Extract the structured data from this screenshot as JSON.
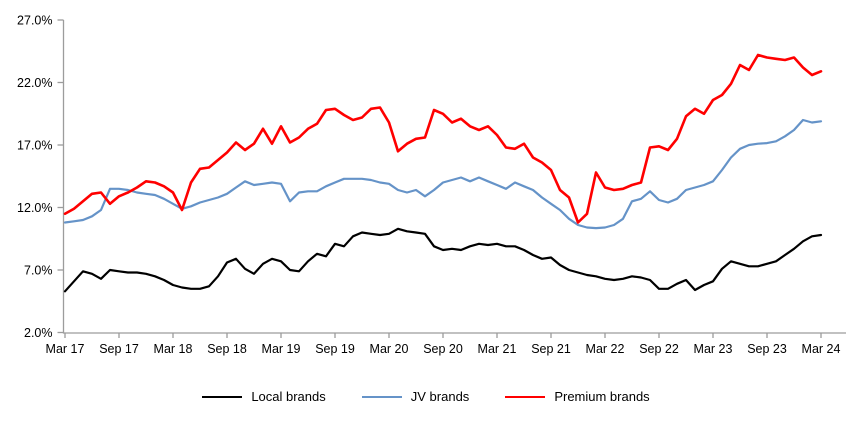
{
  "chart_data": {
    "type": "line",
    "title": "",
    "xlabel": "",
    "ylabel": "",
    "frequency": "monthly",
    "x_range": [
      "Mar 2017",
      "Mar 2024"
    ],
    "x_tick_labels": [
      "Mar 17",
      "Sep 17",
      "Mar 18",
      "Sep 18",
      "Mar 19",
      "Sep 19",
      "Mar 20",
      "Sep 20",
      "Mar 21",
      "Sep 21",
      "Mar 22",
      "Sep 22",
      "Mar 23",
      "Sep 23",
      "Mar 24"
    ],
    "y_tick_labels": [
      "27.0%",
      "22.0%",
      "17.0%",
      "12.0%",
      "7.0%",
      "2.0%"
    ],
    "ylim": [
      2.0,
      27.0
    ],
    "y_unit": "%",
    "grid": false,
    "legend_position": "bottom",
    "axis_color": "#9c9c9c",
    "series": [
      {
        "name": "Local brands",
        "color": "#000000",
        "stroke_width": 2.2,
        "values": [
          5.3,
          6.1,
          6.9,
          6.7,
          6.3,
          7.0,
          6.9,
          6.8,
          6.8,
          6.7,
          6.5,
          6.2,
          5.8,
          5.6,
          5.5,
          5.5,
          5.7,
          6.5,
          7.6,
          7.9,
          7.1,
          6.7,
          7.5,
          7.9,
          7.7,
          7.0,
          6.9,
          7.7,
          8.3,
          8.1,
          9.1,
          8.9,
          9.7,
          10.0,
          9.9,
          9.8,
          9.9,
          10.3,
          10.1,
          10.0,
          9.9,
          8.9,
          8.6,
          8.7,
          8.6,
          8.9,
          9.1,
          9.0,
          9.1,
          8.9,
          8.9,
          8.6,
          8.2,
          7.9,
          8.0,
          7.4,
          7.0,
          6.8,
          6.6,
          6.5,
          6.3,
          6.2,
          6.3,
          6.5,
          6.4,
          6.2,
          5.5,
          5.5,
          5.9,
          6.2,
          5.4,
          5.8,
          6.1,
          7.1,
          7.7,
          7.5,
          7.3,
          7.3,
          7.5,
          7.7,
          8.2,
          8.7,
          9.3,
          9.7,
          9.8
        ]
      },
      {
        "name": "JV brands",
        "color": "#6593C8",
        "stroke_width": 2.2,
        "values": [
          10.8,
          10.9,
          11.0,
          11.3,
          11.8,
          13.5,
          13.5,
          13.4,
          13.2,
          13.1,
          13.0,
          12.7,
          12.3,
          11.9,
          12.1,
          12.4,
          12.6,
          12.8,
          13.1,
          13.6,
          14.1,
          13.8,
          13.9,
          14.0,
          13.9,
          12.5,
          13.2,
          13.3,
          13.3,
          13.7,
          14.0,
          14.3,
          14.3,
          14.3,
          14.2,
          14.0,
          13.9,
          13.4,
          13.2,
          13.4,
          12.9,
          13.4,
          14.0,
          14.2,
          14.4,
          14.1,
          14.4,
          14.1,
          13.8,
          13.5,
          14.0,
          13.7,
          13.4,
          12.8,
          12.3,
          11.8,
          11.1,
          10.6,
          10.4,
          10.35,
          10.4,
          10.6,
          11.1,
          12.5,
          12.7,
          13.3,
          12.6,
          12.4,
          12.7,
          13.4,
          13.6,
          13.8,
          14.1,
          15.0,
          16.0,
          16.7,
          17.0,
          17.1,
          17.15,
          17.3,
          17.7,
          18.2,
          19.0,
          18.8,
          18.9
        ]
      },
      {
        "name": "Premium brands",
        "color": "#FF0000",
        "stroke_width": 2.6,
        "values": [
          11.5,
          11.9,
          12.5,
          13.1,
          13.2,
          12.3,
          12.9,
          13.2,
          13.6,
          14.1,
          14.0,
          13.7,
          13.2,
          11.8,
          14.0,
          15.1,
          15.2,
          15.8,
          16.4,
          17.2,
          16.6,
          17.1,
          18.3,
          17.1,
          18.5,
          17.2,
          17.6,
          18.3,
          18.7,
          19.8,
          19.9,
          19.4,
          19.0,
          19.2,
          19.9,
          20.0,
          18.8,
          16.5,
          17.1,
          17.5,
          17.6,
          19.8,
          19.5,
          18.8,
          19.1,
          18.5,
          18.2,
          18.5,
          17.8,
          16.8,
          16.7,
          17.1,
          16.0,
          15.6,
          15.0,
          13.4,
          12.8,
          10.8,
          11.5,
          14.8,
          13.6,
          13.4,
          13.5,
          13.8,
          14.0,
          16.8,
          16.9,
          16.6,
          17.5,
          19.3,
          19.9,
          19.5,
          20.6,
          21.0,
          21.9,
          23.4,
          23.0,
          24.2,
          24.0,
          23.9,
          23.8,
          24.0,
          23.2,
          22.6,
          22.9
        ]
      }
    ]
  }
}
